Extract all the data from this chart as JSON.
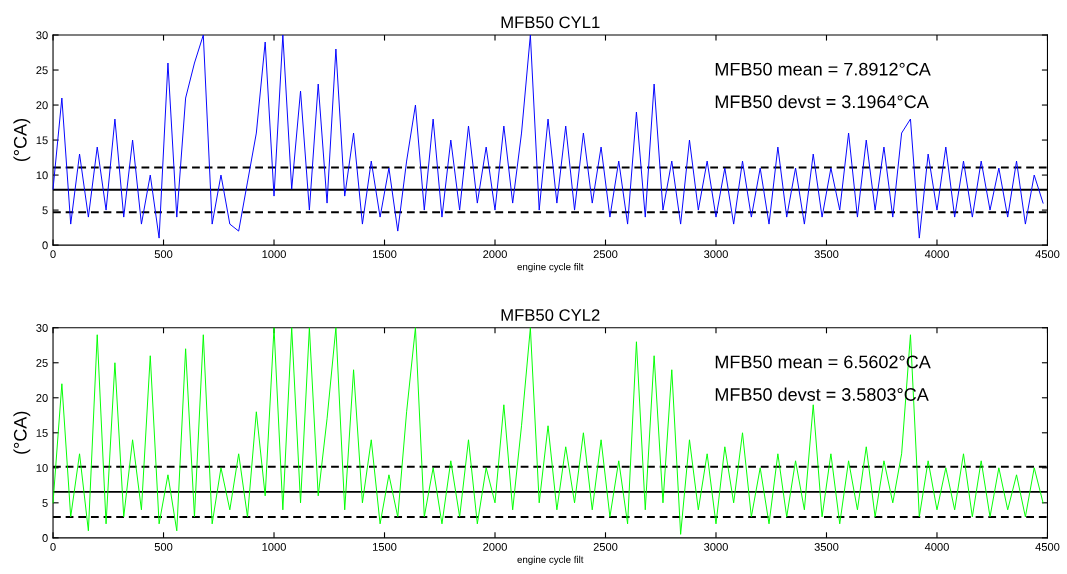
{
  "chart_data": [
    {
      "type": "line",
      "title": "MFB50 CYL1",
      "xlabel": "engine cycle filt",
      "ylabel": "(°CA)",
      "xlim": [
        0,
        4500
      ],
      "ylim": [
        0,
        30
      ],
      "xticks": [
        0,
        500,
        1000,
        1500,
        2000,
        2500,
        3000,
        3500,
        4000,
        4500
      ],
      "yticks": [
        0,
        5,
        10,
        15,
        20,
        25,
        30
      ],
      "grid": false,
      "x": [
        0,
        40,
        80,
        120,
        160,
        200,
        240,
        280,
        320,
        360,
        400,
        440,
        480,
        520,
        560,
        600,
        640,
        680,
        720,
        760,
        800,
        840,
        880,
        920,
        960,
        1000,
        1040,
        1080,
        1120,
        1160,
        1200,
        1240,
        1280,
        1320,
        1360,
        1400,
        1440,
        1480,
        1520,
        1560,
        1600,
        1640,
        1680,
        1720,
        1760,
        1800,
        1840,
        1880,
        1920,
        1960,
        2000,
        2040,
        2080,
        2120,
        2160,
        2200,
        2240,
        2280,
        2320,
        2360,
        2400,
        2440,
        2480,
        2520,
        2560,
        2600,
        2640,
        2680,
        2720,
        2760,
        2800,
        2840,
        2880,
        2920,
        2960,
        3000,
        3040,
        3080,
        3120,
        3160,
        3200,
        3240,
        3280,
        3320,
        3360,
        3400,
        3440,
        3480,
        3520,
        3560,
        3600,
        3640,
        3680,
        3720,
        3760,
        3800,
        3840,
        3880,
        3920,
        3960,
        4000,
        4040,
        4080,
        4120,
        4160,
        4200,
        4240,
        4280,
        4320,
        4360,
        4400,
        4440,
        4480
      ],
      "series": [
        {
          "color": "#0000ff",
          "values": [
            8,
            21,
            3,
            13,
            4,
            14,
            5,
            18,
            4,
            15,
            3,
            10,
            1,
            26,
            4,
            21,
            26,
            30,
            3,
            10,
            3,
            2,
            9,
            16,
            29,
            7,
            30,
            8,
            22,
            5,
            23,
            6,
            28,
            7,
            16,
            3,
            12,
            4,
            11,
            2,
            12,
            20,
            5,
            18,
            4,
            15,
            5,
            17,
            6,
            14,
            5,
            17,
            6,
            16,
            30,
            5,
            18,
            6,
            17,
            5,
            16,
            6,
            14,
            4,
            12,
            3,
            19,
            4,
            23,
            5,
            12,
            3,
            15,
            5,
            12,
            4,
            11,
            3,
            12,
            4,
            11,
            3,
            14,
            4,
            11,
            3,
            13,
            4,
            11,
            5,
            16,
            4,
            15,
            5,
            14,
            4,
            16,
            18,
            1,
            13,
            5,
            14,
            4,
            12,
            4,
            12,
            5,
            11,
            4,
            12,
            3,
            10,
            6
          ]
        }
      ],
      "ref_lines": [
        {
          "axis": "y",
          "value": 7.8912,
          "color": "#000000",
          "line_style": "solid"
        },
        {
          "axis": "y",
          "value": 11.0876,
          "color": "#000000",
          "line_style": "dashed"
        },
        {
          "axis": "y",
          "value": 4.6948,
          "color": "#000000",
          "line_style": "dashed"
        }
      ],
      "annotations": [
        "MFB50 mean = 7.8912°CA",
        "MFB50 devst = 3.1964°CA"
      ]
    },
    {
      "type": "line",
      "title": "MFB50 CYL2",
      "xlabel": "engine cycle filt",
      "ylabel": "(°CA)",
      "xlim": [
        0,
        4500
      ],
      "ylim": [
        0,
        30
      ],
      "xticks": [
        0,
        500,
        1000,
        1500,
        2000,
        2500,
        3000,
        3500,
        4000,
        4500
      ],
      "yticks": [
        0,
        5,
        10,
        15,
        20,
        25,
        30
      ],
      "grid": false,
      "x": [
        0,
        40,
        80,
        120,
        160,
        200,
        240,
        280,
        320,
        360,
        400,
        440,
        480,
        520,
        560,
        600,
        640,
        680,
        720,
        760,
        800,
        840,
        880,
        920,
        960,
        1000,
        1040,
        1080,
        1120,
        1160,
        1200,
        1240,
        1280,
        1320,
        1360,
        1400,
        1440,
        1480,
        1520,
        1560,
        1600,
        1640,
        1680,
        1720,
        1760,
        1800,
        1840,
        1880,
        1920,
        1960,
        2000,
        2040,
        2080,
        2120,
        2160,
        2200,
        2240,
        2280,
        2320,
        2360,
        2400,
        2440,
        2480,
        2520,
        2560,
        2600,
        2640,
        2680,
        2720,
        2760,
        2800,
        2840,
        2880,
        2920,
        2960,
        3000,
        3040,
        3080,
        3120,
        3160,
        3200,
        3240,
        3280,
        3320,
        3360,
        3400,
        3440,
        3480,
        3520,
        3560,
        3600,
        3640,
        3680,
        3720,
        3760,
        3800,
        3840,
        3880,
        3920,
        3960,
        4000,
        4040,
        4080,
        4120,
        4160,
        4200,
        4240,
        4280,
        4320,
        4360,
        4400,
        4440,
        4480
      ],
      "series": [
        {
          "color": "#00ff00",
          "values": [
            5,
            22,
            3,
            12,
            1,
            29,
            2,
            25,
            3,
            14,
            4,
            26,
            2,
            9,
            1,
            27,
            3,
            29,
            2,
            10,
            4,
            12,
            3,
            18,
            6,
            30,
            4,
            30,
            5,
            30,
            6,
            17,
            30,
            4,
            24,
            5,
            14,
            2,
            9,
            3,
            18,
            30,
            3,
            10,
            2,
            11,
            3,
            14,
            2,
            10,
            5,
            19,
            4,
            16,
            30,
            5,
            16,
            4,
            13,
            5,
            15,
            4,
            14,
            3,
            11,
            2,
            28,
            4,
            26,
            5,
            24,
            0.5,
            14,
            4,
            12,
            2,
            13,
            5,
            15,
            3,
            10,
            2,
            12,
            3,
            11,
            4,
            19,
            3,
            12,
            2,
            11,
            4,
            13,
            3,
            11,
            5,
            12,
            29,
            3,
            11,
            4,
            10,
            4,
            12,
            3,
            11,
            3,
            10,
            4,
            9,
            3,
            10,
            5
          ]
        }
      ],
      "ref_lines": [
        {
          "axis": "y",
          "value": 6.5602,
          "color": "#000000",
          "line_style": "solid"
        },
        {
          "axis": "y",
          "value": 10.1405,
          "color": "#000000",
          "line_style": "dashed"
        },
        {
          "axis": "y",
          "value": 2.9799,
          "color": "#000000",
          "line_style": "dashed"
        }
      ],
      "annotations": [
        "MFB50 mean = 6.5602°CA",
        "MFB50 devst = 3.5803°CA"
      ]
    }
  ]
}
